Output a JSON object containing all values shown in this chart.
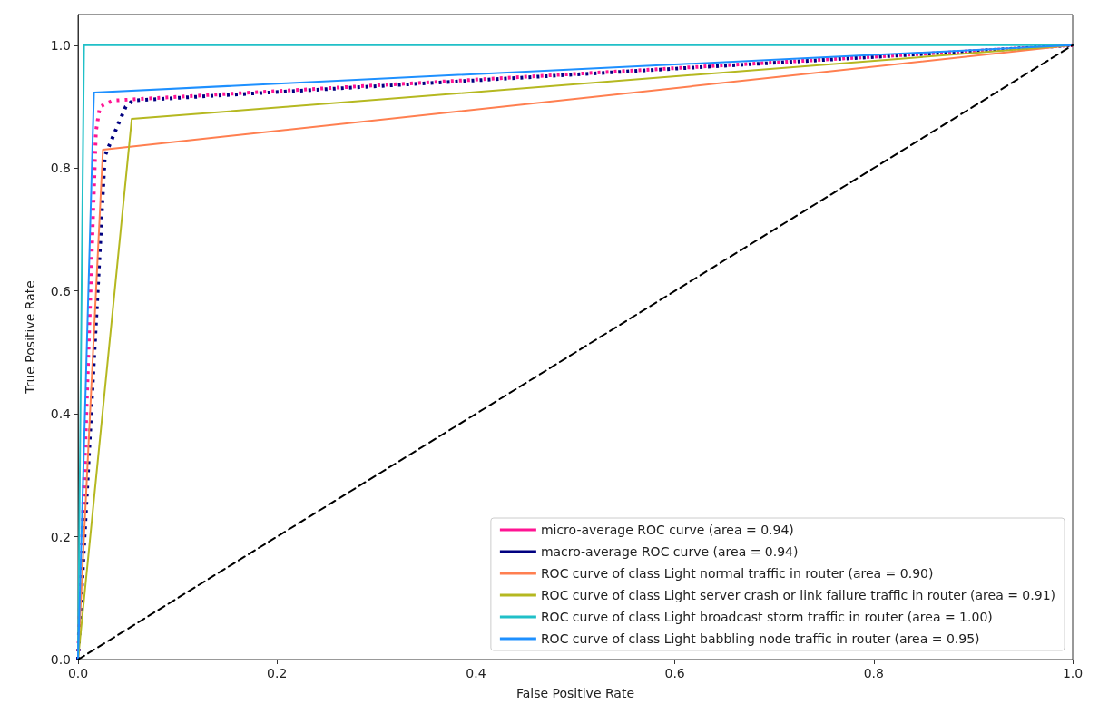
{
  "chart_data": {
    "type": "line",
    "xlabel": "False Positive Rate",
    "ylabel": "True Positive Rate",
    "xlim": [
      0,
      1
    ],
    "ylim": [
      0,
      1.05
    ],
    "xticks": [
      {
        "value": 0,
        "label": "0.0"
      },
      {
        "value": 0.2,
        "label": "0.2"
      },
      {
        "value": 0.4,
        "label": "0.4"
      },
      {
        "value": 0.6,
        "label": "0.6"
      },
      {
        "value": 0.8,
        "label": "0.8"
      },
      {
        "value": 1,
        "label": "1.0"
      }
    ],
    "yticks": [
      {
        "value": 0,
        "label": "0.0"
      },
      {
        "value": 0.2,
        "label": "0.2"
      },
      {
        "value": 0.4,
        "label": "0.4"
      },
      {
        "value": 0.6,
        "label": "0.6"
      },
      {
        "value": 0.8,
        "label": "0.8"
      },
      {
        "value": 1,
        "label": "1.0"
      }
    ],
    "grid": false,
    "legend": "bottom right",
    "marker": "none",
    "series": [
      {
        "name": "micro-average ROC curve (area = 0.94)",
        "color": "#ff1493",
        "line_style": "dotted",
        "x": [
          0,
          0.018,
          0.022,
          0.035,
          1
        ],
        "values": [
          0,
          0.86,
          0.9,
          0.91,
          1
        ]
      },
      {
        "name": "macro-average ROC curve (area = 0.94)",
        "color": "#000080",
        "line_style": "dotted",
        "x": [
          0,
          0.027,
          0.04,
          0.048,
          0.055,
          1
        ],
        "values": [
          0,
          0.82,
          0.87,
          0.9,
          0.91,
          1
        ]
      },
      {
        "name": "ROC curve of class Light normal traffic in router (area = 0.90)",
        "color": "#ff7f50",
        "line_style": "solid",
        "x": [
          0,
          0.025,
          1
        ],
        "values": [
          0,
          0.83,
          1
        ]
      },
      {
        "name": "ROC curve of class Light server crash or link failure traffic in router (area = 0.91)",
        "color": "#b5b820",
        "line_style": "solid",
        "x": [
          0,
          0.054,
          1
        ],
        "values": [
          0,
          0.88,
          1
        ]
      },
      {
        "name": "ROC curve of class Light broadcast storm traffic in router (area = 1.00)",
        "color": "#20c0c8",
        "line_style": "solid",
        "x": [
          0,
          0.006,
          1
        ],
        "values": [
          0,
          1,
          1
        ]
      },
      {
        "name": "ROC curve of class Light babbling node traffic in router (area = 0.95)",
        "color": "#1e90ff",
        "line_style": "solid",
        "x": [
          0,
          0.016,
          1
        ],
        "values": [
          0,
          0.923,
          1
        ]
      },
      {
        "color": "#000000",
        "line_style": "dashed",
        "x": [
          0,
          1
        ],
        "values": [
          0,
          1
        ]
      }
    ]
  }
}
